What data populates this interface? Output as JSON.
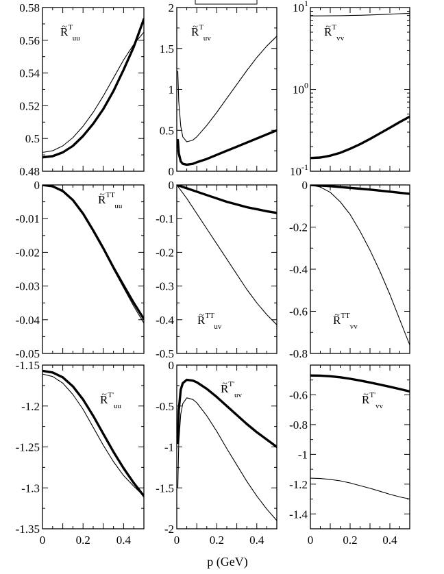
{
  "figure": {
    "xlabel": "p (GeV)",
    "colors": {
      "axes": "#000000",
      "lines": "#000000",
      "background": "#ffffff"
    }
  },
  "chart_data": [
    {
      "type": "line",
      "row": 0,
      "col": 0,
      "label": {
        "base": "R",
        "sup": "T",
        "sub": "uu"
      },
      "xlim": [
        0,
        0.5
      ],
      "ylim": [
        0.48,
        0.58
      ],
      "yscale": "linear",
      "xticks": [],
      "yticks": [
        0.48,
        0.5,
        0.52,
        0.54,
        0.56,
        0.58
      ],
      "yticklabels": [
        "0.48",
        "0.5",
        "0.52",
        "0.54",
        "0.56",
        "0.58"
      ],
      "series": [
        {
          "style": "thin",
          "x": [
            0,
            0.05,
            0.1,
            0.15,
            0.2,
            0.25,
            0.3,
            0.35,
            0.4,
            0.45,
            0.5
          ],
          "y": [
            0.4915,
            0.4925,
            0.4955,
            0.5005,
            0.5075,
            0.516,
            0.526,
            0.537,
            0.548,
            0.5575,
            0.565
          ]
        },
        {
          "style": "thick",
          "x": [
            0,
            0.05,
            0.1,
            0.15,
            0.2,
            0.25,
            0.3,
            0.35,
            0.4,
            0.45,
            0.5
          ],
          "y": [
            0.4885,
            0.4892,
            0.4915,
            0.4955,
            0.5015,
            0.509,
            0.518,
            0.529,
            0.542,
            0.556,
            0.573
          ]
        }
      ]
    },
    {
      "type": "line",
      "row": 0,
      "col": 1,
      "label": {
        "base": "R",
        "sup": "T",
        "sub": "uv"
      },
      "xlim": [
        0,
        0.5
      ],
      "ylim": [
        0,
        2
      ],
      "yscale": "linear",
      "xticks": [],
      "yticks": [
        0,
        0.5,
        1,
        1.5,
        2
      ],
      "yticklabels": [
        "0",
        "0.5",
        "1",
        "1.5",
        "2"
      ],
      "series": [
        {
          "style": "thin",
          "x": [
            0.005,
            0.01,
            0.02,
            0.03,
            0.05,
            0.08,
            0.1,
            0.15,
            0.2,
            0.25,
            0.3,
            0.35,
            0.4,
            0.45,
            0.5
          ],
          "y": [
            1.22,
            0.85,
            0.55,
            0.42,
            0.36,
            0.38,
            0.42,
            0.56,
            0.72,
            0.89,
            1.06,
            1.23,
            1.39,
            1.53,
            1.65
          ]
        },
        {
          "style": "thick",
          "x": [
            0.005,
            0.01,
            0.02,
            0.03,
            0.05,
            0.08,
            0.1,
            0.15,
            0.2,
            0.25,
            0.3,
            0.35,
            0.4,
            0.45,
            0.5
          ],
          "y": [
            0.38,
            0.22,
            0.12,
            0.09,
            0.08,
            0.09,
            0.11,
            0.15,
            0.2,
            0.25,
            0.3,
            0.35,
            0.4,
            0.45,
            0.5
          ]
        }
      ]
    },
    {
      "type": "line",
      "row": 0,
      "col": 2,
      "label": {
        "base": "R",
        "sup": "T",
        "sub": "vv"
      },
      "xlim": [
        0,
        0.5
      ],
      "ylim": [
        0.1,
        10
      ],
      "yscale": "log",
      "xticks": [],
      "yticks": [
        0.1,
        1,
        10
      ],
      "yticklabels": [
        {
          "base": "10",
          "sup": "-1"
        },
        {
          "base": "10",
          "sup": "0"
        },
        {
          "base": "10",
          "sup": "1"
        }
      ],
      "series": [
        {
          "style": "thin",
          "x": [
            0,
            0.05,
            0.1,
            0.15,
            0.2,
            0.25,
            0.3,
            0.35,
            0.4,
            0.45,
            0.5
          ],
          "y": [
            7.9,
            7.9,
            7.92,
            7.95,
            8.0,
            8.05,
            8.12,
            8.2,
            8.3,
            8.4,
            8.5
          ]
        },
        {
          "style": "thick",
          "x": [
            0,
            0.05,
            0.1,
            0.15,
            0.2,
            0.25,
            0.3,
            0.35,
            0.4,
            0.45,
            0.5
          ],
          "y": [
            0.145,
            0.147,
            0.155,
            0.168,
            0.188,
            0.214,
            0.248,
            0.29,
            0.34,
            0.4,
            0.465
          ]
        }
      ]
    },
    {
      "type": "line",
      "row": 1,
      "col": 0,
      "label": {
        "base": "R",
        "sup": "TT",
        "sub": "uu"
      },
      "xlim": [
        0,
        0.5
      ],
      "ylim": [
        -0.05,
        0
      ],
      "yscale": "linear",
      "xticks": [],
      "yticks": [
        -0.05,
        -0.04,
        -0.03,
        -0.02,
        -0.01,
        0
      ],
      "yticklabels": [
        "-0.05",
        "-0.04",
        "-0.03",
        "-0.02",
        "-0.01",
        "0"
      ],
      "series": [
        {
          "style": "thin",
          "x": [
            0,
            0.05,
            0.1,
            0.15,
            0.2,
            0.25,
            0.3,
            0.35,
            0.4,
            0.45,
            0.5
          ],
          "y": [
            0,
            -0.0004,
            -0.0018,
            -0.0045,
            -0.0085,
            -0.0135,
            -0.019,
            -0.025,
            -0.0305,
            -0.036,
            -0.041
          ]
        },
        {
          "style": "thick",
          "x": [
            0,
            0.05,
            0.1,
            0.15,
            0.2,
            0.25,
            0.3,
            0.35,
            0.4,
            0.45,
            0.5
          ],
          "y": [
            0,
            -0.0004,
            -0.0018,
            -0.0045,
            -0.0085,
            -0.0135,
            -0.0188,
            -0.0245,
            -0.0298,
            -0.035,
            -0.0398
          ]
        }
      ]
    },
    {
      "type": "line",
      "row": 1,
      "col": 1,
      "label": {
        "base": "R",
        "sup": "TT",
        "sub": "uv"
      },
      "xlim": [
        0,
        0.5
      ],
      "ylim": [
        -0.5,
        0
      ],
      "yscale": "linear",
      "xticks": [],
      "yticks": [
        -0.5,
        -0.4,
        -0.3,
        -0.2,
        -0.1,
        0
      ],
      "yticklabels": [
        "-0.5",
        "-0.4",
        "-0.3",
        "-0.2",
        "-0.1",
        "0"
      ],
      "series": [
        {
          "style": "thin",
          "x": [
            0,
            0.05,
            0.1,
            0.15,
            0.2,
            0.25,
            0.3,
            0.35,
            0.4,
            0.45,
            0.5
          ],
          "y": [
            0,
            -0.04,
            -0.085,
            -0.13,
            -0.175,
            -0.22,
            -0.265,
            -0.31,
            -0.35,
            -0.385,
            -0.415
          ]
        },
        {
          "style": "thick",
          "x": [
            0,
            0.05,
            0.1,
            0.15,
            0.2,
            0.25,
            0.3,
            0.35,
            0.4,
            0.45,
            0.5
          ],
          "y": [
            0,
            -0.01,
            -0.02,
            -0.03,
            -0.04,
            -0.05,
            -0.058,
            -0.066,
            -0.072,
            -0.078,
            -0.083
          ]
        }
      ]
    },
    {
      "type": "line",
      "row": 1,
      "col": 2,
      "label": {
        "base": "R",
        "sup": "TT",
        "sub": "vv"
      },
      "xlim": [
        0,
        0.5
      ],
      "ylim": [
        -0.8,
        0
      ],
      "yscale": "linear",
      "xticks": [],
      "yticks": [
        -0.8,
        -0.6,
        -0.4,
        -0.2,
        0
      ],
      "yticklabels": [
        "-0.8",
        "-0.6",
        "-0.4",
        "-0.2",
        "0"
      ],
      "series": [
        {
          "style": "thin",
          "x": [
            0,
            0.05,
            0.1,
            0.15,
            0.2,
            0.25,
            0.3,
            0.35,
            0.4,
            0.45,
            0.5
          ],
          "y": [
            0,
            -0.01,
            -0.035,
            -0.08,
            -0.14,
            -0.22,
            -0.31,
            -0.41,
            -0.52,
            -0.64,
            -0.76
          ]
        },
        {
          "style": "thick",
          "x": [
            0,
            0.05,
            0.1,
            0.15,
            0.2,
            0.25,
            0.3,
            0.35,
            0.4,
            0.45,
            0.5
          ],
          "y": [
            0,
            -0.003,
            -0.006,
            -0.01,
            -0.014,
            -0.018,
            -0.022,
            -0.027,
            -0.032,
            -0.037,
            -0.042
          ]
        }
      ]
    },
    {
      "type": "line",
      "row": 2,
      "col": 0,
      "label": {
        "base": "R",
        "sup": "T'",
        "sub": "uu"
      },
      "xlim": [
        0,
        0.5
      ],
      "ylim": [
        -1.35,
        -1.15
      ],
      "yscale": "linear",
      "xticks": [
        0,
        0.2,
        0.4
      ],
      "xticklabels": [
        "0",
        "0.2",
        "0.4"
      ],
      "yticks": [
        -1.35,
        -1.3,
        -1.25,
        -1.2,
        -1.15
      ],
      "yticklabels": [
        "-1.35",
        "-1.3",
        "-1.25",
        "-1.2",
        "-1.15"
      ],
      "series": [
        {
          "style": "thin",
          "x": [
            0,
            0.05,
            0.1,
            0.15,
            0.2,
            0.25,
            0.3,
            0.35,
            0.4,
            0.45,
            0.5
          ],
          "y": [
            -1.161,
            -1.164,
            -1.172,
            -1.186,
            -1.204,
            -1.226,
            -1.248,
            -1.268,
            -1.285,
            -1.298,
            -1.31
          ]
        },
        {
          "style": "thick",
          "x": [
            0,
            0.05,
            0.1,
            0.15,
            0.2,
            0.25,
            0.3,
            0.35,
            0.4,
            0.45,
            0.5
          ],
          "y": [
            -1.157,
            -1.159,
            -1.165,
            -1.176,
            -1.192,
            -1.212,
            -1.234,
            -1.256,
            -1.276,
            -1.294,
            -1.31
          ]
        }
      ]
    },
    {
      "type": "line",
      "row": 2,
      "col": 1,
      "label": {
        "base": "R",
        "sup": "T'",
        "sub": "uv"
      },
      "xlim": [
        0,
        0.5
      ],
      "ylim": [
        -2,
        0
      ],
      "yscale": "linear",
      "xticks": [
        0,
        0.2,
        0.4
      ],
      "xticklabels": [
        "0",
        "0.2",
        "0.4"
      ],
      "yticks": [
        -2,
        -1.5,
        -1,
        -0.5,
        0
      ],
      "yticklabels": [
        "-2",
        "-1.5",
        "-1",
        "-0.5",
        "0"
      ],
      "series": [
        {
          "style": "thin",
          "x": [
            0.005,
            0.01,
            0.02,
            0.03,
            0.05,
            0.08,
            0.1,
            0.15,
            0.2,
            0.25,
            0.3,
            0.35,
            0.4,
            0.45,
            0.5
          ],
          "y": [
            -1.5,
            -0.95,
            -0.6,
            -0.47,
            -0.4,
            -0.42,
            -0.46,
            -0.62,
            -0.81,
            -1.02,
            -1.22,
            -1.42,
            -1.6,
            -1.76,
            -1.9
          ]
        },
        {
          "style": "thick",
          "x": [
            0.005,
            0.01,
            0.02,
            0.03,
            0.05,
            0.08,
            0.1,
            0.15,
            0.2,
            0.25,
            0.3,
            0.35,
            0.4,
            0.45,
            0.5
          ],
          "y": [
            -0.95,
            -0.55,
            -0.3,
            -0.22,
            -0.18,
            -0.19,
            -0.21,
            -0.29,
            -0.39,
            -0.5,
            -0.61,
            -0.72,
            -0.82,
            -0.91,
            -1.0
          ]
        }
      ]
    },
    {
      "type": "line",
      "row": 2,
      "col": 2,
      "label": {
        "base": "R",
        "sup": "T'",
        "sub": "vv"
      },
      "xlim": [
        0,
        0.5
      ],
      "ylim": [
        -1.5,
        -0.4
      ],
      "yscale": "linear",
      "xticks": [
        0,
        0.2,
        0.4
      ],
      "xticklabels": [
        "0",
        "0.2",
        "0.4"
      ],
      "yticks": [
        -1.4,
        -1.2,
        -1,
        -0.8,
        -0.6
      ],
      "yticklabels": [
        "-1.4",
        "-1.2",
        "-1",
        "-0.8",
        "-0.6"
      ],
      "series": [
        {
          "style": "thin",
          "x": [
            0,
            0.05,
            0.1,
            0.15,
            0.2,
            0.25,
            0.3,
            0.35,
            0.4,
            0.45,
            0.5
          ],
          "y": [
            -1.16,
            -1.162,
            -1.168,
            -1.178,
            -1.192,
            -1.21,
            -1.228,
            -1.248,
            -1.268,
            -1.286,
            -1.3
          ]
        },
        {
          "style": "thick",
          "x": [
            0,
            0.05,
            0.1,
            0.15,
            0.2,
            0.25,
            0.3,
            0.35,
            0.4,
            0.45,
            0.5
          ],
          "y": [
            -0.47,
            -0.471,
            -0.475,
            -0.482,
            -0.492,
            -0.504,
            -0.517,
            -0.531,
            -0.546,
            -0.561,
            -0.577
          ]
        }
      ]
    }
  ]
}
